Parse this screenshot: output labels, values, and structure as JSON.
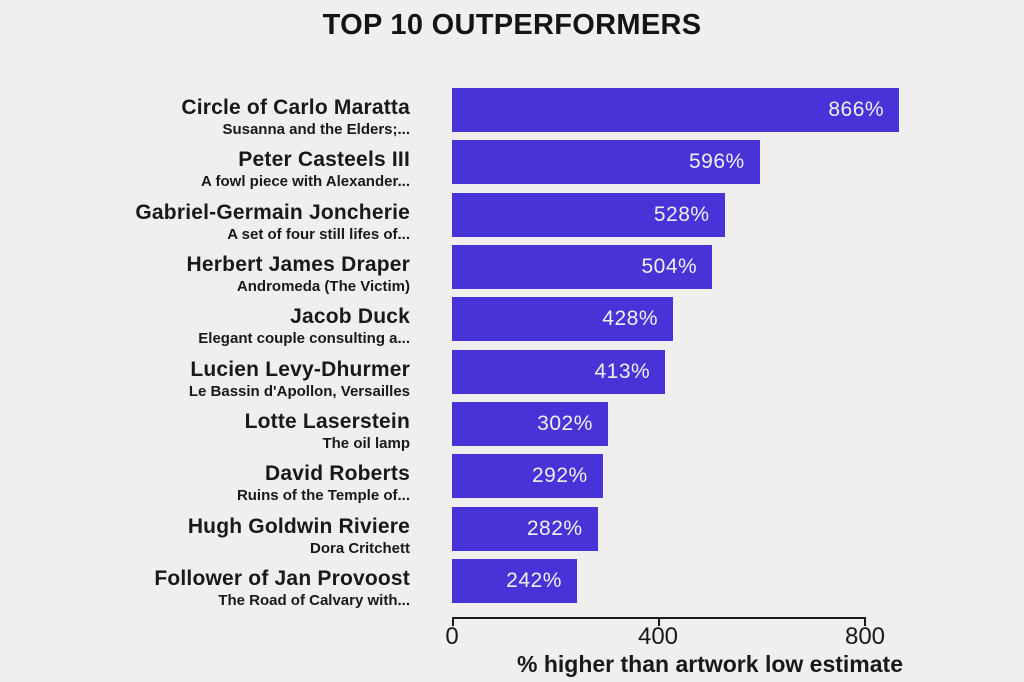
{
  "chart_data": {
    "type": "bar",
    "orientation": "horizontal",
    "title": "TOP 10 OUTPERFORMERS",
    "xlabel": "% higher than artwork low estimate",
    "xlim": [
      0,
      908
    ],
    "xticks": [
      0,
      400,
      800
    ],
    "grid": false,
    "legend": false,
    "bar_color": "#4733d8",
    "background_color": "#f0efed",
    "value_label_color": "#f1efee",
    "categories": [
      "Circle of Carlo Maratta",
      "Peter Casteels III",
      "Gabriel-Germain Joncherie",
      "Herbert James Draper",
      "Jacob Duck",
      "Lucien Levy-Dhurmer",
      "Lotte Laserstein",
      "David Roberts",
      "Hugh Goldwin Riviere",
      "Follower of Jan Provoost"
    ],
    "subtitles": [
      "Susanna and the Elders;...",
      "A fowl piece with Alexander...",
      "A set of four still lifes of...",
      "Andromeda (The Victim)",
      "Elegant couple consulting a...",
      "Le Bassin d'Apollon, Versailles",
      "The oil lamp",
      "Ruins of the Temple of...",
      "Dora Critchett",
      "The Road of Calvary with..."
    ],
    "values": [
      866,
      596,
      528,
      504,
      428,
      413,
      302,
      292,
      282,
      242
    ],
    "value_labels": [
      "866%",
      "596%",
      "528%",
      "504%",
      "428%",
      "413%",
      "302%",
      "292%",
      "282%",
      "242%"
    ]
  },
  "axis": {
    "ticks": [
      "0",
      "400",
      "800"
    ],
    "xlabel": "% higher than artwork low estimate"
  }
}
